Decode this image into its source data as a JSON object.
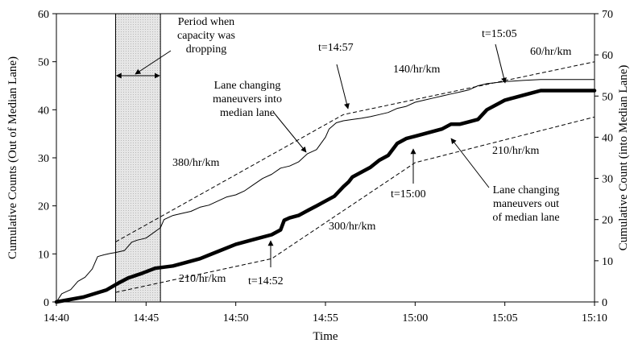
{
  "chart_data": {
    "type": "line",
    "xlabel": "Time",
    "ylabel_left": "Cumulative Counts (Out of Median Lane)",
    "ylabel_right": "Cumulative Count (into Median Lane)",
    "x_ticks": [
      "14:40",
      "14:45",
      "14:50",
      "14:55",
      "15:00",
      "15:05",
      "15:10"
    ],
    "xlim_minutes": [
      0,
      30
    ],
    "ylim_left": [
      0,
      60
    ],
    "ylim_right": [
      0,
      70
    ],
    "y_ticks_left": [
      0,
      10,
      20,
      30,
      40,
      50,
      60
    ],
    "y_ticks_right": [
      0,
      10,
      20,
      30,
      40,
      50,
      60,
      70
    ],
    "shaded_period": {
      "start": "14:43.3",
      "end": "14:45.8",
      "start_min": 3.3,
      "end_min": 5.8
    },
    "series": [
      {
        "axis": "right",
        "style": "thin",
        "x": [
          0,
          0.3,
          0.8,
          1.2,
          1.6,
          2.0,
          2.3,
          2.7,
          3.0,
          3.3,
          3.8,
          4.2,
          4.5,
          5.0,
          5.8,
          6.0,
          6.5,
          7.0,
          7.5,
          8.0,
          8.5,
          9.0,
          9.5,
          10.0,
          10.5,
          11.0,
          11.5,
          12.0,
          12.5,
          13.0,
          13.5,
          14.0,
          14.5,
          15.0,
          15.2,
          15.6,
          16.0,
          16.5,
          17.0,
          17.5,
          18.0,
          18.5,
          19.0,
          19.5,
          20.0,
          20.5,
          21.0,
          21.5,
          22.0,
          22.5,
          23.0,
          23.5,
          24.0,
          25.0,
          26.0,
          27.0,
          28.0,
          29.0,
          30.0
        ],
        "y": [
          0,
          2,
          3,
          5,
          6,
          8,
          11,
          11.5,
          11.8,
          12,
          12.5,
          14.5,
          15,
          15.5,
          18,
          20,
          21,
          21.5,
          22,
          23,
          23.5,
          24.5,
          25.5,
          26,
          27,
          28.5,
          30,
          31,
          32.5,
          33,
          34,
          36,
          37,
          40,
          42,
          43.5,
          44,
          44.3,
          44.6,
          45,
          45.5,
          46,
          47,
          47.5,
          48.5,
          49,
          49.5,
          50,
          50.5,
          51,
          51.5,
          52.5,
          53,
          53.5,
          53.8,
          54,
          54,
          54,
          54
        ]
      },
      {
        "axis": "left",
        "style": "thick",
        "x": [
          0,
          1.5,
          2.8,
          3.5,
          4.0,
          4.8,
          5.5,
          6.5,
          7.0,
          8.0,
          9.0,
          10.0,
          11.0,
          12.0,
          12.5,
          12.7,
          13.0,
          13.5,
          14.0,
          14.5,
          15.0,
          15.5,
          16.0,
          16.3,
          16.5,
          17.0,
          17.5,
          18.0,
          18.5,
          19.0,
          19.5,
          20.0,
          20.5,
          21.0,
          21.5,
          22.0,
          22.5,
          23.0,
          23.5,
          24.0,
          24.5,
          25.0,
          25.5,
          26.0,
          26.5,
          27.0,
          27.5,
          28.0,
          28.5,
          29.0,
          29.5,
          30.0
        ],
        "y": [
          0,
          1,
          2.5,
          4,
          5,
          6,
          7,
          7.5,
          8,
          9,
          10.5,
          12,
          13,
          14,
          15,
          17,
          17.5,
          18,
          19,
          20,
          21,
          22,
          24,
          25,
          26,
          27,
          28,
          29.5,
          30.5,
          33,
          34,
          34.5,
          35,
          35.5,
          36,
          37,
          37,
          37.5,
          38,
          40,
          41,
          42,
          42.5,
          43,
          43.5,
          44,
          44,
          44,
          44,
          44,
          44,
          44
        ]
      },
      {
        "axis": "left",
        "style": "dashed",
        "x": [
          3.3,
          16.0,
          30.0
        ],
        "y": [
          12.5,
          39,
          50
        ]
      },
      {
        "axis": "left",
        "style": "dashed",
        "x": [
          3.3,
          12.0,
          20.0,
          30.0
        ],
        "y": [
          2,
          9,
          29,
          38.5
        ]
      }
    ],
    "annotations": [
      {
        "lines": [
          "Period when",
          "capacity was",
          "dropping"
        ]
      },
      {
        "lines": [
          "Lane changing",
          "maneuvers into",
          "median lane"
        ]
      },
      {
        "lines": [
          "Lane changing",
          "maneuvers out",
          "of median lane"
        ]
      },
      {
        "lines": [
          "380/hr/km"
        ]
      },
      {
        "lines": [
          "140/hr/km"
        ]
      },
      {
        "lines": [
          "60/hr/km"
        ]
      },
      {
        "lines": [
          "210/hr/km"
        ]
      },
      {
        "lines": [
          "300/hr/km"
        ]
      },
      {
        "lines": [
          "210/hr/km"
        ]
      },
      {
        "lines": [
          "t=14:57"
        ]
      },
      {
        "lines": [
          "t=15:05"
        ]
      },
      {
        "lines": [
          "t=15:00"
        ]
      },
      {
        "lines": [
          "t=14:52"
        ]
      }
    ]
  }
}
